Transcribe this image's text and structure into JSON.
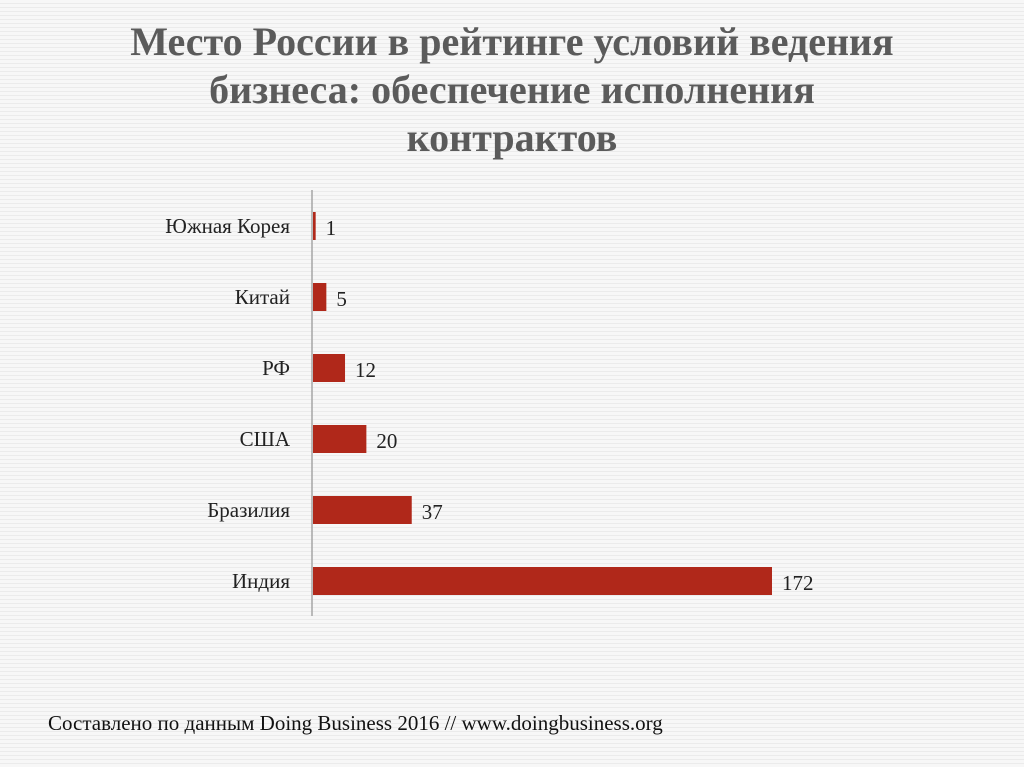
{
  "slide": {
    "title_lines": [
      "Место России в рейтинге условий ведения",
      "бизнеса: обеспечение исполнения",
      "контрактов"
    ],
    "source": "Составлено по данным Doing Business 2016 // www.doingbusiness.org"
  },
  "colors": {
    "bar": "#b0281a",
    "axis": "#a6a6a6",
    "title": "#5b5b5b"
  },
  "chart_data": {
    "type": "bar",
    "orientation": "horizontal",
    "categories": [
      "Южная Корея",
      "Китай",
      "РФ",
      "США",
      "Бразилия",
      "Индия"
    ],
    "values": [
      1,
      5,
      12,
      20,
      37,
      172
    ],
    "data_labels": [
      "1",
      "5",
      "12",
      "20",
      "37",
      "172"
    ],
    "title": "Место России в рейтинге условий ведения бизнеса: обеспечение исполнения контрактов",
    "xlabel": "",
    "ylabel": "",
    "xlim": [
      0,
      172
    ],
    "grid": false,
    "legend": "none"
  }
}
